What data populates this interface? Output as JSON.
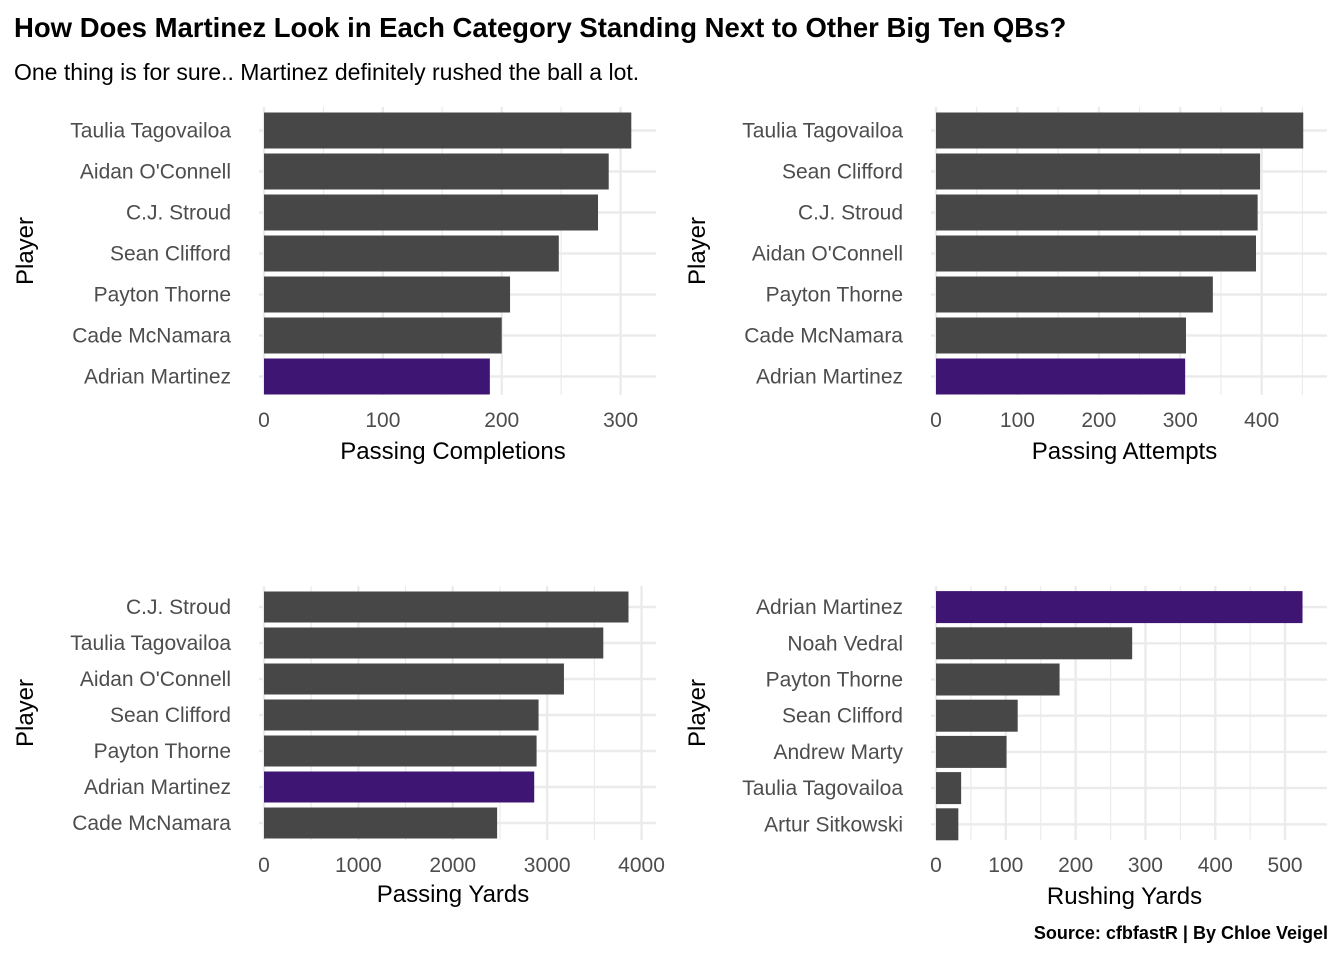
{
  "title": "How Does Martinez Look in Each Category Standing Next to Other Big Ten QBs?",
  "subtitle": "One thing is for sure.. Martinez definitely rushed the ball a lot.",
  "caption": "Source: cfbfastR | By Chloe Veigel",
  "colors": {
    "highlight": "#3f1574",
    "bar": "#474747",
    "grid": "#ebebeb",
    "tick_text": "#4d4d4d"
  },
  "chart_data": [
    {
      "type": "bar",
      "orientation": "horizontal",
      "categories": [
        "Taulia Tagovailoa",
        "Aidan O'Connell",
        "C.J. Stroud",
        "Sean Clifford",
        "Payton Thorne",
        "Cade McNamara",
        "Adrian Martinez"
      ],
      "values": [
        309,
        290,
        281,
        248,
        207,
        200,
        190
      ],
      "highlight": "Adrian Martinez",
      "xlabel": "Passing Completions",
      "ylabel": "Player",
      "xlim": [
        0,
        318
      ],
      "xticks": [
        0,
        100,
        200,
        300
      ],
      "grid": true
    },
    {
      "type": "bar",
      "orientation": "horizontal",
      "categories": [
        "Taulia Tagovailoa",
        "Sean Clifford",
        "C.J. Stroud",
        "Aidan O'Connell",
        "Payton Thorne",
        "Cade McNamara",
        "Adrian Martinez"
      ],
      "values": [
        451,
        398,
        395,
        393,
        340,
        307,
        306
      ],
      "highlight": "Adrian Martinez",
      "xlabel": "Passing Attempts",
      "ylabel": "Player",
      "xlim": [
        0,
        463
      ],
      "xticks": [
        0,
        100,
        200,
        300,
        400
      ],
      "grid": true
    },
    {
      "type": "bar",
      "orientation": "horizontal",
      "categories": [
        "C.J. Stroud",
        "Taulia Tagovailoa",
        "Aidan O'Connell",
        "Sean Clifford",
        "Payton Thorne",
        "Adrian Martinez",
        "Cade McNamara"
      ],
      "values": [
        3862,
        3595,
        3178,
        2909,
        2888,
        2863,
        2470
      ],
      "highlight": "Adrian Martinez",
      "xlabel": "Passing Yards",
      "ylabel": "Player",
      "xlim": [
        0,
        4005
      ],
      "xticks": [
        0,
        1000,
        2000,
        3000,
        4000
      ],
      "grid": true
    },
    {
      "type": "bar",
      "orientation": "horizontal",
      "categories": [
        "Adrian Martinez",
        "Noah Vedral",
        "Payton Thorne",
        "Sean Clifford",
        "Andrew Marty",
        "Taulia Tagovailoa",
        "Artur Sitkowski"
      ],
      "values": [
        525,
        281,
        177,
        117,
        101,
        36,
        32
      ],
      "highlight": "Adrian Martinez",
      "xlabel": "Rushing Yards",
      "ylabel": "Player",
      "xlim": [
        0,
        540
      ],
      "xticks": [
        0,
        100,
        200,
        300,
        400,
        500
      ],
      "grid": true
    }
  ]
}
